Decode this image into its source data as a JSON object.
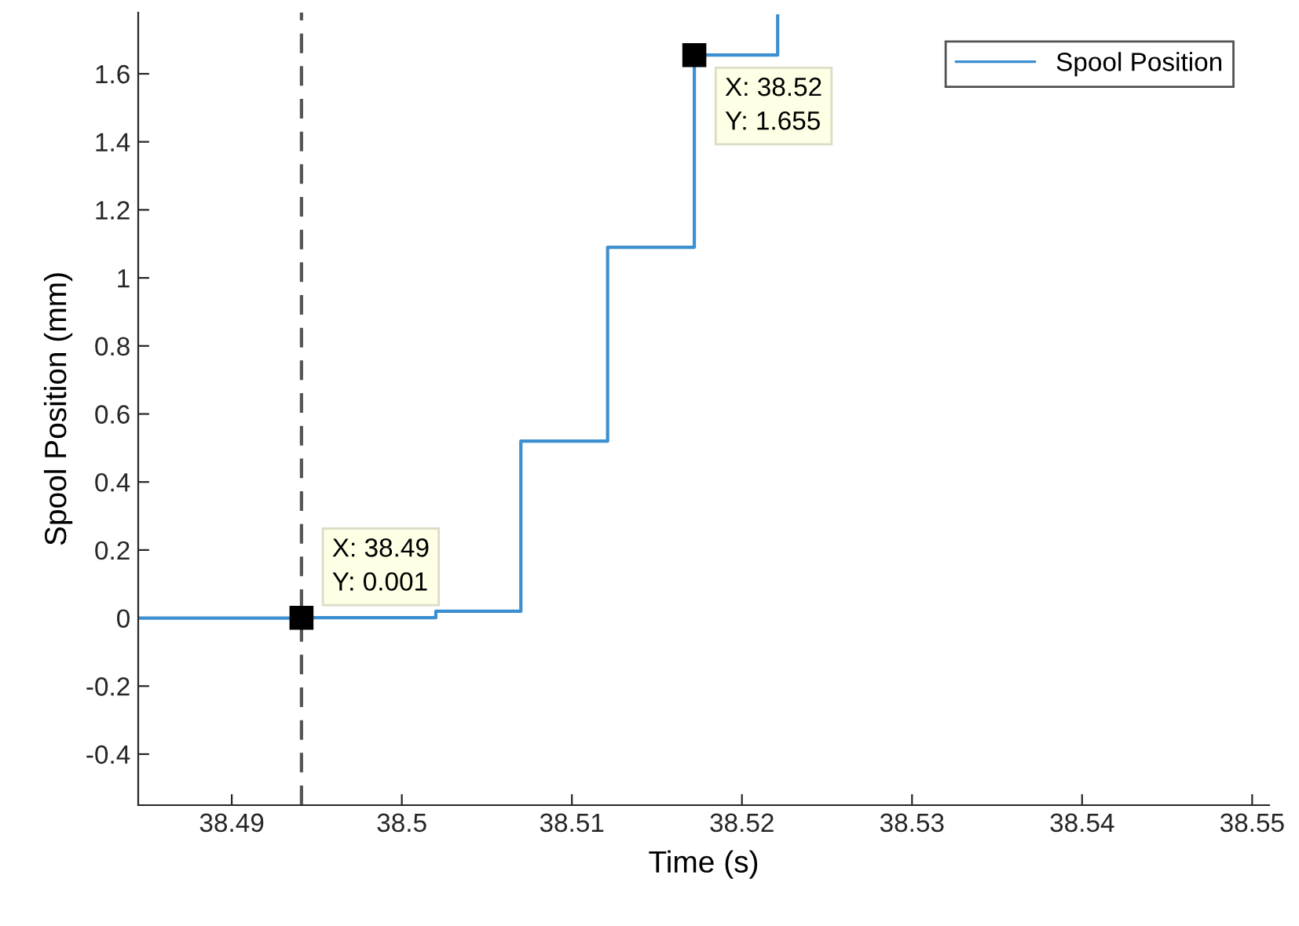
{
  "chart_data": {
    "type": "step",
    "xlabel": "Time (s)",
    "ylabel": "Spool Position (mm)",
    "x": [
      38.4845,
      38.4941,
      38.502,
      38.507,
      38.5121,
      38.5172,
      38.5221
    ],
    "series": [
      {
        "name": "Spool Position",
        "color": "#3c8fd0",
        "values": [
          0,
          0.001,
          0.02,
          0.52,
          1.09,
          1.655,
          1.77
        ]
      }
    ],
    "xlim": [
      38.4845,
      38.551
    ],
    "xticks": [
      38.49,
      38.5,
      38.51,
      38.52,
      38.53,
      38.54,
      38.55
    ],
    "ylim": [
      -0.55,
      1.78
    ],
    "yticks": [
      -0.4,
      -0.2,
      0,
      0.2,
      0.4,
      0.6,
      0.8,
      1,
      1.2,
      1.4,
      1.6
    ],
    "ref_lines": [
      {
        "axis": "x",
        "value": 38.4941,
        "color": "#555555",
        "line_style": "dashed"
      }
    ],
    "annotations": [
      {
        "text": "X: 38.49\nY: 0.001",
        "x": 38.4941,
        "y": 0.001
      },
      {
        "text": "X: 38.52\nY: 1.655",
        "x": 38.5172,
        "y": 1.655
      }
    ],
    "legend": "top right",
    "grid": false
  }
}
